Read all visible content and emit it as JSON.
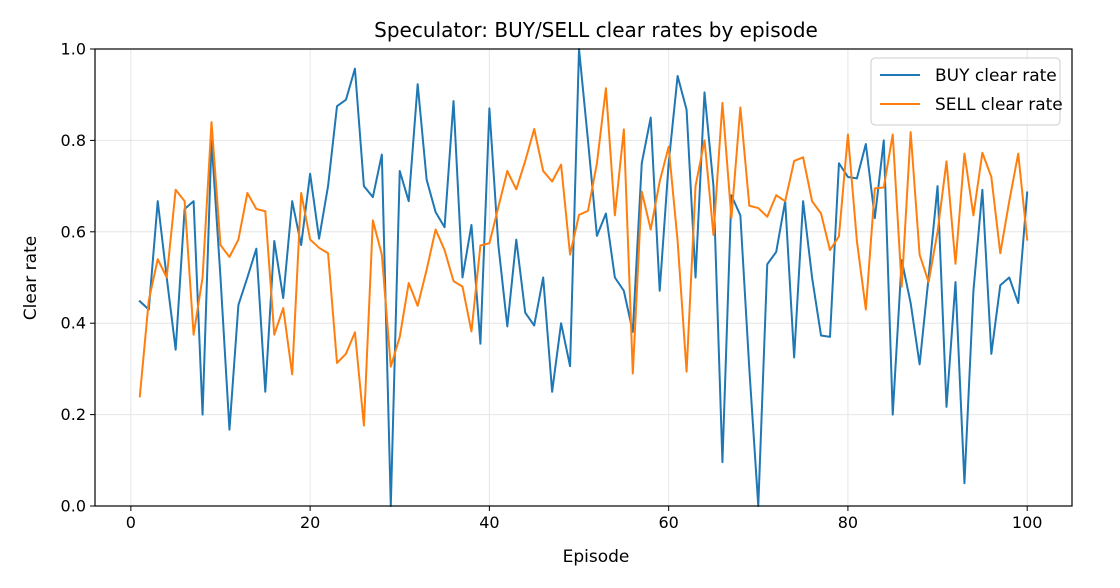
{
  "chart_data": {
    "type": "line",
    "title": "Speculator: BUY/SELL clear rates by episode",
    "xlabel": "Episode",
    "ylabel": "Clear rate",
    "xlim": [
      -4,
      105
    ],
    "ylim": [
      0.0,
      1.0
    ],
    "xticks": [
      0,
      20,
      40,
      60,
      80,
      100
    ],
    "yticks": [
      0.0,
      0.2,
      0.4,
      0.6,
      0.8,
      1.0
    ],
    "xtick_labels": [
      "0",
      "20",
      "40",
      "60",
      "80",
      "100"
    ],
    "ytick_labels": [
      "0.0",
      "0.2",
      "0.4",
      "0.6",
      "0.8",
      "1.0"
    ],
    "grid": true,
    "legend_position": "top-right",
    "x": [
      1,
      2,
      3,
      4,
      5,
      6,
      7,
      8,
      9,
      10,
      11,
      12,
      13,
      14,
      15,
      16,
      17,
      18,
      19,
      20,
      21,
      22,
      23,
      24,
      25,
      26,
      27,
      28,
      29,
      30,
      31,
      32,
      33,
      34,
      35,
      36,
      37,
      38,
      39,
      40,
      41,
      42,
      43,
      44,
      45,
      46,
      47,
      48,
      49,
      50,
      51,
      52,
      53,
      54,
      55,
      56,
      57,
      58,
      59,
      60,
      61,
      62,
      63,
      64,
      65,
      66,
      67,
      68,
      69,
      70,
      71,
      72,
      73,
      74,
      75,
      76,
      77,
      78,
      79,
      80,
      81,
      82,
      83,
      84,
      85,
      86,
      87,
      88,
      89,
      90,
      91,
      92,
      93,
      94,
      95,
      96,
      97,
      98,
      99,
      100
    ],
    "series": [
      {
        "name": "BUY clear rate",
        "color": "#1f77b4",
        "values": [
          0.448,
          0.43,
          0.667,
          0.5,
          0.342,
          0.65,
          0.667,
          0.2,
          0.8,
          0.5,
          0.167,
          0.44,
          0.5,
          0.563,
          0.25,
          0.58,
          0.455,
          0.667,
          0.571,
          0.727,
          0.585,
          0.7,
          0.875,
          0.889,
          0.957,
          0.7,
          0.676,
          0.769,
          0.0,
          0.733,
          0.667,
          0.923,
          0.714,
          0.643,
          0.61,
          0.886,
          0.5,
          0.615,
          0.355,
          0.87,
          0.571,
          0.393,
          0.583,
          0.423,
          0.395,
          0.5,
          0.25,
          0.4,
          0.306,
          1.0,
          0.8,
          0.591,
          0.64,
          0.5,
          0.471,
          0.381,
          0.75,
          0.85,
          0.471,
          0.75,
          0.941,
          0.867,
          0.5,
          0.905,
          0.7,
          0.096,
          0.68,
          0.636,
          0.3,
          0.0,
          0.529,
          0.556,
          0.667,
          0.325,
          0.667,
          0.5,
          0.373,
          0.37,
          0.75,
          0.72,
          0.717,
          0.792,
          0.63,
          0.8,
          0.2,
          0.538,
          0.444,
          0.31,
          0.5,
          0.7,
          0.217,
          0.49,
          0.05,
          0.47,
          0.692,
          0.333,
          0.483,
          0.5,
          0.444,
          0.686
        ]
      },
      {
        "name": "SELL clear rate",
        "color": "#ff7f0e",
        "values": [
          0.24,
          0.45,
          0.54,
          0.5,
          0.692,
          0.667,
          0.375,
          0.5,
          0.84,
          0.571,
          0.545,
          0.583,
          0.685,
          0.65,
          0.645,
          0.375,
          0.433,
          0.288,
          0.685,
          0.583,
          0.565,
          0.553,
          0.313,
          0.333,
          0.38,
          0.176,
          0.625,
          0.55,
          0.305,
          0.37,
          0.488,
          0.438,
          0.517,
          0.605,
          0.56,
          0.492,
          0.48,
          0.382,
          0.57,
          0.575,
          0.654,
          0.733,
          0.693,
          0.755,
          0.825,
          0.733,
          0.71,
          0.747,
          0.55,
          0.637,
          0.646,
          0.75,
          0.914,
          0.636,
          0.824,
          0.29,
          0.688,
          0.605,
          0.71,
          0.786,
          0.58,
          0.294,
          0.7,
          0.8,
          0.593,
          0.882,
          0.63,
          0.872,
          0.657,
          0.652,
          0.633,
          0.68,
          0.667,
          0.755,
          0.763,
          0.667,
          0.64,
          0.56,
          0.59,
          0.813,
          0.58,
          0.43,
          0.695,
          0.697,
          0.813,
          0.48,
          0.818,
          0.55,
          0.49,
          0.6,
          0.754,
          0.53,
          0.771,
          0.636,
          0.773,
          0.72,
          0.553,
          0.667,
          0.771,
          0.583
        ]
      }
    ]
  }
}
